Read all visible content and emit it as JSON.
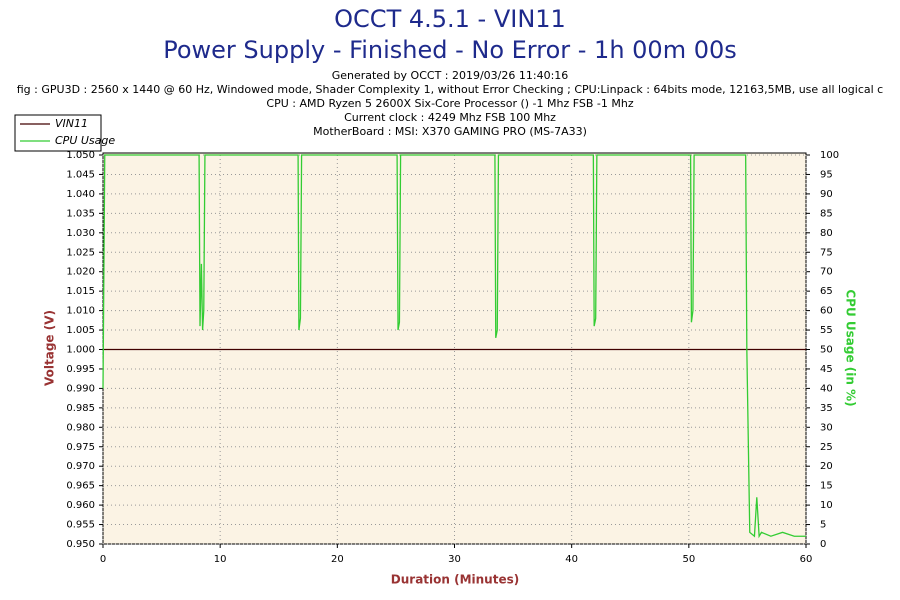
{
  "chart_data": {
    "type": "line",
    "title": "OCCT 4.5.1 - VIN11",
    "subtitle": "Power Supply - Finished - No Error - 1h 00m 00s",
    "info": [
      "Generated by OCCT : 2019/03/26 11:40:16",
      "fig : GPU3D : 2560 x 1440 @ 60 Hz, Windowed mode, Shader Complexity 1, without Error Checking ; CPU:Linpack : 64bits mode, 12163,5MB, use all logical c",
      "CPU : AMD Ryzen 5 2600X Six-Core Processor () -1 Mhz FSB -1 Mhz",
      "Current clock : 4249 Mhz FSB 100 Mhz",
      "MotherBoard : MSI: X370 GAMING PRO (MS-7A33)"
    ],
    "xlabel": "Duration (Minutes)",
    "ylabel": "Voltage (V)",
    "y2label": "CPU Usage (in %)",
    "x": [
      0,
      0.15,
      8.2,
      8.28,
      8.4,
      8.5,
      8.6,
      8.7,
      16.65,
      16.72,
      16.85,
      16.95,
      25.1,
      25.18,
      25.3,
      25.4,
      33.45,
      33.52,
      33.65,
      33.75,
      41.85,
      41.92,
      42.05,
      42.15,
      50.15,
      50.22,
      50.35,
      50.45,
      54.85,
      54.95,
      55.2,
      55.6,
      55.8,
      56.0,
      56.2,
      57,
      58,
      59,
      60
    ],
    "series": [
      {
        "name": "VIN11",
        "color": "#400000",
        "values": [
          1,
          1,
          1,
          1,
          1,
          1,
          1,
          1,
          1,
          1,
          1,
          1,
          1,
          1,
          1,
          1,
          1,
          1,
          1,
          1,
          1,
          1,
          1,
          1,
          1,
          1,
          1,
          1,
          1,
          1,
          1,
          1,
          1,
          1,
          1,
          1,
          1,
          1,
          1
        ]
      },
      {
        "name": "CPU Usage",
        "color": "#33cc33",
        "axis": "y2",
        "values": [
          40,
          100,
          100,
          56,
          72,
          55,
          60,
          100,
          100,
          55,
          58,
          100,
          100,
          55,
          57,
          100,
          100,
          53,
          55,
          100,
          100,
          56,
          58,
          100,
          100,
          57,
          60,
          100,
          100,
          50,
          3,
          2,
          12,
          2,
          3,
          2,
          3,
          2,
          2
        ]
      }
    ],
    "xlim": [
      0,
      60
    ],
    "xticks": [
      0,
      10,
      20,
      30,
      40,
      50,
      60
    ],
    "ylim": [
      0.95,
      1.05
    ],
    "yticks": [
      {
        "value": 0.95,
        "label": "0.950"
      },
      0.955,
      {
        "value": 0.96,
        "label": "0.960"
      },
      0.965,
      {
        "value": 0.97,
        "label": "0.970"
      },
      0.975,
      {
        "value": 0.98,
        "label": "0.980"
      },
      0.985,
      {
        "value": 0.99,
        "label": "0.990"
      },
      0.995,
      {
        "value": 1,
        "label": "1.000"
      },
      1.005,
      {
        "value": 1.01,
        "label": "1.010"
      },
      1.015,
      {
        "value": 1.02,
        "label": "1.020"
      },
      1.025,
      {
        "value": 1.03,
        "label": "1.030"
      },
      1.035,
      {
        "value": 1.04,
        "label": "1.040"
      },
      1.045,
      {
        "value": 1.05,
        "label": "1.050"
      }
    ],
    "y2lim": [
      0,
      100
    ],
    "y2ticks": [
      0,
      5,
      10,
      15,
      20,
      25,
      30,
      35,
      40,
      45,
      50,
      55,
      60,
      65,
      70,
      75,
      80,
      85,
      90,
      95,
      100
    ],
    "grid": true,
    "legend": "top-left"
  }
}
